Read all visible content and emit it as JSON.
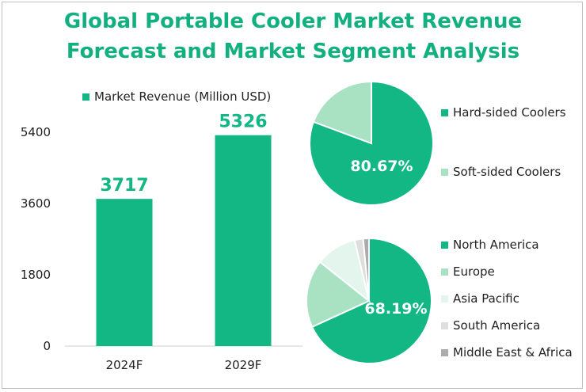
{
  "title_line1": "Global Portable Cooler Market Revenue",
  "title_line2": "Forecast and Market Segment Analysis",
  "colors": {
    "title": "#12b07f",
    "primary": "#12b784",
    "light_green": "#a8e2c3",
    "pale_green": "#e3f5ec",
    "light_gray": "#dedede",
    "gray": "#ababab"
  },
  "chart_data": [
    {
      "type": "bar",
      "legend": "Market Revenue (Million USD)",
      "categories": [
        "2024F",
        "2029F"
      ],
      "values": [
        3717,
        5326
      ],
      "data_labels": [
        "3717",
        "5326"
      ],
      "ylim": [
        0,
        5400
      ],
      "yticks": [
        "0",
        "1800",
        "3600",
        "5400"
      ],
      "legend_position": "top",
      "grid": false
    },
    {
      "type": "pie",
      "labels": [
        "Hard-sided Coolers",
        "Soft-sided Coolers"
      ],
      "values": [
        80.67,
        19.33
      ],
      "data_label": "80.67%",
      "legend_position": "right"
    },
    {
      "type": "pie",
      "labels": [
        "North America",
        "Europe",
        "Asia Pacific",
        "South America",
        "Middle East & Africa"
      ],
      "values": [
        68.19,
        17.5,
        10.6,
        2.2,
        1.51
      ],
      "data_label": "68.19%",
      "legend_position": "right"
    }
  ]
}
